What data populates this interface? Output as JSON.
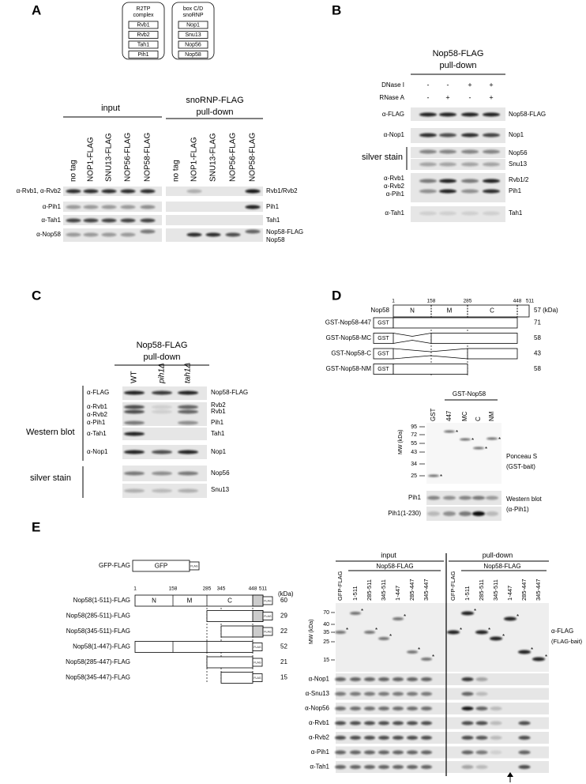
{
  "panel_a": {
    "label": "A",
    "r2tp": {
      "title": [
        "R2TP",
        "complex"
      ],
      "items": [
        "Rvb1",
        "Rvb2",
        "Tah1",
        "Pih1"
      ]
    },
    "snornp": {
      "title": [
        "box C/D",
        "snoRNP"
      ],
      "items": [
        "Nop1",
        "Snu13",
        "Nop56",
        "Nop58"
      ]
    },
    "input": "input",
    "pulldown": [
      "snoRNP-FLAG",
      "pull-down"
    ],
    "input_lanes": [
      "no tag",
      "NOP1-FLAG",
      "SNU13-FLAG",
      "NOP56-FLAG",
      "NOP58-FLAG"
    ],
    "pulldown_lanes": [
      "no tag",
      "NOP1-FLAG",
      "SNU13-FLAG",
      "NOP56-FLAG",
      "NOP58-FLAG"
    ],
    "antibodies": [
      "α-Rvb1, α-Rvb2",
      "α-Pih1",
      "α-Tah1",
      "α-Nop58"
    ],
    "proteins": [
      "Rvb1/Rvb2",
      "Pih1",
      "Tah1",
      "Nop58-FLAG",
      "Nop58"
    ]
  },
  "panel_b": {
    "label": "B",
    "title": [
      "Nop58-FLAG",
      "pull-down"
    ],
    "treatments": [
      {
        "name": "DNase I",
        "signs": [
          "-",
          "-",
          "+",
          "+"
        ]
      },
      {
        "name": "RNase A",
        "signs": [
          "-",
          "+",
          "-",
          "+"
        ]
      }
    ],
    "antibodies": [
      "α-FLAG",
      "α-Nop1",
      "α-Rvb1",
      "α-Rvb2",
      "α-Pih1",
      "α-Tah1"
    ],
    "stain": "silver stain",
    "proteins": [
      "Nop58-FLAG",
      "Nop1",
      "Nop56",
      "Snu13",
      "Rvb1/2",
      "Pih1",
      "Tah1"
    ]
  },
  "panel_c": {
    "label": "C",
    "title": [
      "Nop58-FLAG",
      "pull-down"
    ],
    "lanes": [
      "WT",
      "pih1Δ",
      "tah1Δ"
    ],
    "western": "Western blot",
    "stain": "silver stain",
    "antibodies": [
      "α-FLAG",
      "α-Rvb1",
      "α-Rvb2",
      "α-Pih1",
      "α-Tah1",
      "α-Nop1"
    ],
    "proteins": [
      "Nop58-FLAG",
      "Rvb2",
      "Rvb1",
      "Pih1",
      "Tah1",
      "Nop1",
      "Nop56",
      "Snu13"
    ]
  },
  "panel_d": {
    "label": "D",
    "positions": [
      1,
      158,
      285,
      448,
      511
    ],
    "protein": "Nop58",
    "domains": [
      "N",
      "M",
      "C"
    ],
    "full_mw": "57 (kDa)",
    "tag": "GST",
    "constructs": [
      {
        "name": "GST-Nop58-447",
        "mw": 71
      },
      {
        "name": "GST-Nop58-MC",
        "mw": 58
      },
      {
        "name": "GST-Nop58-C",
        "mw": 43
      },
      {
        "name": "GST-Nop58-NM",
        "mw": 58
      }
    ],
    "gel_title": "GST-Nop58",
    "lanes": [
      "GST",
      "447",
      "MC",
      "C",
      "NM"
    ],
    "mw_axis": "MW (kDa)",
    "markers": [
      95,
      72,
      55,
      43,
      34,
      25
    ],
    "star": "*",
    "ponceau": [
      "Ponceau S",
      "(GST-bait)"
    ],
    "blots": [
      "Pih1",
      "Pih1(1-230)"
    ],
    "western": [
      "Western blot",
      "(α-Pih1)"
    ]
  },
  "panel_e": {
    "label": "E",
    "control": {
      "name": "GFP-FLAG",
      "box": "GFP",
      "tag": "FLAG"
    },
    "positions": [
      1,
      158,
      285,
      345,
      448,
      511
    ],
    "domains": [
      "N",
      "M",
      "C"
    ],
    "mw_unit": "(kDa)",
    "constructs": [
      {
        "name": "Nop58(1-511)-FLAG",
        "mw": 60
      },
      {
        "name": "Nop58(285-511)-FLAG",
        "mw": 29
      },
      {
        "name": "Nop58(345-511)-FLAG",
        "mw": 22
      },
      {
        "name": "Nop58(1-447)-FLAG",
        "mw": 52
      },
      {
        "name": "Nop58(285-447)-FLAG",
        "mw": 21
      },
      {
        "name": "Nop58(345-447)-FLAG",
        "mw": 15
      }
    ],
    "input": "input",
    "pulldown": "pull-down",
    "group": "Nop58-FLAG",
    "input_lanes": [
      "GFP-FLAG",
      "1-511",
      "285-511",
      "345-511",
      "1-447",
      "285-447",
      "345-447"
    ],
    "pulldown_lanes": [
      "GFP-FLAG",
      "1-511",
      "285-511",
      "345-511",
      "1-447",
      "285-447",
      "345-447"
    ],
    "mw_axis": "MW (kDa)",
    "markers": [
      70,
      40,
      35,
      25,
      15
    ],
    "star": "*",
    "bait": [
      "α-FLAG",
      "(FLAG-bait)"
    ],
    "antibodies": [
      "α-Nop1",
      "α-Snu13",
      "α-Nop56",
      "α-Rvb1",
      "α-Rvb2",
      "α-Pih1",
      "α-Tah1"
    ]
  }
}
